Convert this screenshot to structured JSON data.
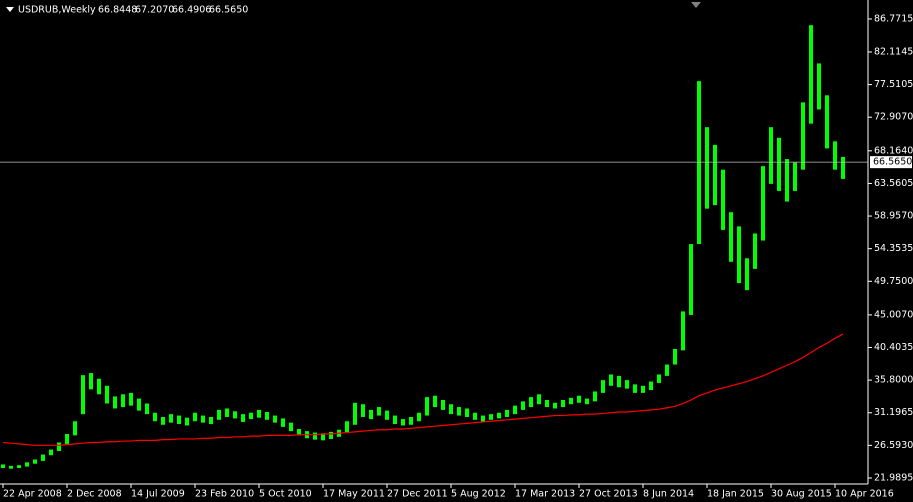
{
  "chart_data": {
    "type": "bar",
    "symbol": "USDRUB,Weekly",
    "quote": [
      "66.8448",
      "67.2070",
      "66.4906",
      "66.5650"
    ],
    "color": "#00ff00",
    "x": [
      0,
      4,
      8,
      12,
      16,
      20,
      24,
      28,
      32,
      36,
      40,
      44,
      48,
      52,
      56,
      60,
      64,
      68,
      72,
      76,
      80,
      84,
      88,
      92,
      96,
      100,
      104,
      108,
      112,
      116,
      120,
      124,
      128,
      132,
      136,
      140,
      144,
      148,
      152,
      156,
      160,
      164,
      168,
      172,
      176,
      180,
      184,
      188,
      192,
      196,
      200,
      204,
      208,
      212,
      216,
      220,
      224,
      228,
      232,
      236,
      240,
      244,
      248,
      252,
      256,
      260,
      264,
      268,
      272,
      276,
      280,
      284,
      288,
      292,
      296,
      300,
      304,
      308,
      312,
      316,
      320,
      324,
      328,
      332,
      336,
      340,
      344,
      348,
      352,
      356,
      360,
      364,
      368,
      372,
      376,
      380,
      384,
      388,
      392,
      396,
      400,
      404,
      408,
      412,
      416,
      420
    ],
    "high": [
      23.9,
      23.7,
      23.8,
      24.2,
      24.6,
      25.3,
      26.0,
      27.0,
      28.2,
      30.0,
      36.5,
      36.8,
      36.0,
      35.0,
      33.5,
      33.8,
      34.0,
      33.2,
      32.5,
      31.2,
      30.6,
      31.0,
      30.8,
      30.5,
      31.2,
      30.8,
      30.6,
      31.6,
      31.8,
      31.4,
      31.0,
      31.2,
      31.6,
      31.3,
      30.8,
      30.4,
      29.8,
      28.9,
      28.6,
      28.4,
      28.3,
      28.5,
      28.8,
      30.0,
      32.6,
      32.4,
      31.6,
      32.0,
      31.5,
      30.8,
      30.3,
      30.6,
      31.2,
      33.4,
      33.6,
      33.0,
      32.4,
      32.0,
      31.8,
      31.2,
      30.8,
      31.0,
      31.2,
      31.6,
      32.2,
      32.8,
      33.4,
      33.8,
      33.0,
      32.6,
      33.0,
      33.3,
      33.6,
      33.2,
      34.2,
      35.8,
      36.6,
      36.4,
      35.8,
      35.2,
      35.0,
      35.6,
      36.6,
      38.0,
      40.2,
      45.5,
      55.0,
      78.0,
      71.5,
      69.0,
      65.5,
      59.5,
      57.5,
      53.0,
      56.5,
      66.0,
      71.5,
      70.0,
      67.0,
      66.5,
      75.0,
      85.9,
      80.5,
      76.0,
      69.5,
      67.3
    ],
    "low": [
      23.4,
      23.3,
      23.4,
      23.6,
      24.0,
      24.4,
      25.2,
      25.8,
      26.8,
      28.0,
      31.0,
      34.5,
      33.8,
      32.5,
      31.8,
      32.0,
      32.2,
      31.5,
      31.0,
      30.0,
      29.5,
      29.8,
      29.6,
      29.4,
      30.0,
      29.8,
      29.6,
      30.2,
      30.6,
      30.4,
      29.9,
      30.3,
      30.5,
      30.2,
      29.8,
      29.2,
      28.6,
      28.0,
      27.6,
      27.4,
      27.3,
      27.5,
      27.8,
      28.4,
      29.5,
      30.6,
      30.3,
      30.8,
      30.2,
      29.6,
      29.4,
      29.5,
      30.0,
      30.8,
      32.0,
      31.6,
      31.0,
      30.8,
      30.6,
      30.2,
      29.9,
      30.2,
      30.4,
      30.6,
      31.0,
      31.6,
      32.0,
      32.4,
      32.0,
      31.8,
      32.0,
      32.4,
      32.6,
      32.4,
      32.8,
      34.0,
      35.0,
      34.8,
      34.6,
      34.0,
      34.0,
      34.4,
      35.4,
      36.4,
      38.0,
      40.0,
      45.0,
      55.0,
      60.0,
      60.5,
      57.0,
      52.5,
      49.5,
      48.5,
      51.5,
      55.5,
      63.5,
      62.5,
      61.0,
      62.5,
      65.5,
      72.0,
      74.0,
      68.5,
      65.5,
      64.2
    ],
    "ma": {
      "color": "#ff0000",
      "values": [
        27.0,
        26.9,
        26.8,
        26.7,
        26.6,
        26.6,
        26.6,
        26.6,
        26.7,
        26.8,
        26.9,
        27.0,
        27.0,
        27.1,
        27.1,
        27.2,
        27.2,
        27.3,
        27.3,
        27.3,
        27.4,
        27.4,
        27.5,
        27.5,
        27.5,
        27.6,
        27.6,
        27.7,
        27.7,
        27.8,
        27.8,
        27.9,
        27.9,
        28.0,
        28.0,
        28.0,
        28.0,
        28.1,
        28.1,
        28.1,
        28.2,
        28.2,
        28.3,
        28.4,
        28.5,
        28.6,
        28.7,
        28.8,
        28.8,
        28.9,
        28.9,
        29.0,
        29.1,
        29.2,
        29.3,
        29.4,
        29.5,
        29.6,
        29.7,
        29.8,
        29.9,
        30.0,
        30.1,
        30.2,
        30.3,
        30.4,
        30.5,
        30.6,
        30.7,
        30.8,
        30.8,
        30.9,
        30.9,
        31.0,
        31.0,
        31.1,
        31.2,
        31.3,
        31.3,
        31.4,
        31.5,
        31.6,
        31.7,
        31.9,
        32.1,
        32.5,
        33.0,
        33.6,
        34.0,
        34.4,
        34.7,
        35.0,
        35.3,
        35.6,
        36.0,
        36.4,
        36.9,
        37.4,
        37.9,
        38.4,
        39.0,
        39.7,
        40.4,
        41.0,
        41.7,
        42.3
      ]
    },
    "price_line": {
      "value": 66.565,
      "label": "66.5650"
    },
    "xlim": [
      -1.5,
      432.5
    ],
    "ylim": [
      21.14,
      89.45
    ],
    "xticks": [
      {
        "value": 0,
        "label": "22 Apr 2008"
      },
      {
        "value": 32,
        "label": "2 Dec 2008"
      },
      {
        "value": 64,
        "label": "14 Jul 2009"
      },
      {
        "value": 96,
        "label": "23 Feb 2010"
      },
      {
        "value": 128,
        "label": "5 Oct 2010"
      },
      {
        "value": 160,
        "label": "17 May 2011"
      },
      {
        "value": 192,
        "label": "27 Dec 2011"
      },
      {
        "value": 224,
        "label": "5 Aug 2012"
      },
      {
        "value": 256,
        "label": "17 Mar 2013"
      },
      {
        "value": 288,
        "label": "27 Oct 2013"
      },
      {
        "value": 320,
        "label": "8 Jun 2014"
      },
      {
        "value": 352,
        "label": "18 Jan 2015"
      },
      {
        "value": 384,
        "label": "30 Aug 2015"
      },
      {
        "value": 416,
        "label": "10 Apr 2016"
      }
    ],
    "yticks": [
      {
        "value": 86.7715,
        "label": "86.7715"
      },
      {
        "value": 82.1145,
        "label": "82.1145"
      },
      {
        "value": 77.5105,
        "label": "77.5105"
      },
      {
        "value": 72.907,
        "label": "72.9070"
      },
      {
        "value": 68.164,
        "label": "68.1640"
      },
      {
        "value": 63.5605,
        "label": "63.5605"
      },
      {
        "value": 58.957,
        "label": "58.9570"
      },
      {
        "value": 54.3535,
        "label": "54.3535"
      },
      {
        "value": 49.75,
        "label": "49.7500"
      },
      {
        "value": 45.007,
        "label": "45.0070"
      },
      {
        "value": 40.4035,
        "label": "40.4035"
      },
      {
        "value": 35.8,
        "label": "35.8000"
      },
      {
        "value": 31.1965,
        "label": "31.1965"
      },
      {
        "value": 26.593,
        "label": "26.5930"
      },
      {
        "value": 21.9895,
        "label": "21.9895"
      }
    ]
  }
}
